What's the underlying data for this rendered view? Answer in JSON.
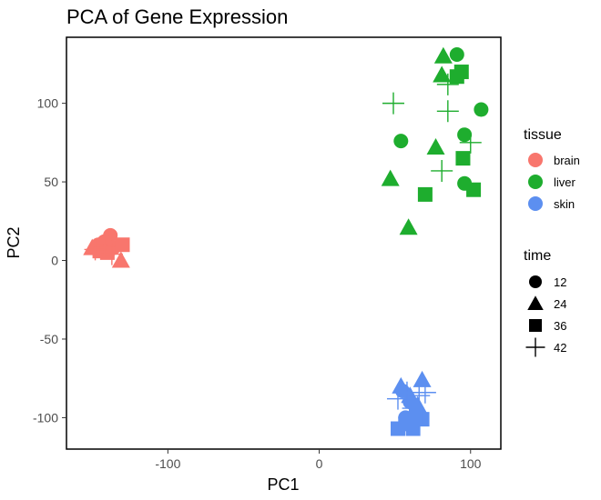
{
  "chart_data": {
    "type": "scatter",
    "title": "PCA of Gene Expression",
    "xlabel": "PC1",
    "ylabel": "PC2",
    "xlim": [
      -167,
      120
    ],
    "ylim": [
      -120,
      142
    ],
    "xticks": [
      -100,
      0,
      100
    ],
    "yticks": [
      -100,
      -50,
      0,
      50,
      100
    ],
    "grid": false,
    "legend_position": "right",
    "legends": [
      {
        "title": "tissue",
        "entries": [
          {
            "label": "brain",
            "color": "#F8766D",
            "shape": "circle"
          },
          {
            "label": "liver",
            "color": "#1EAD2E",
            "shape": "circle"
          },
          {
            "label": "skin",
            "color": "#5C8FF0",
            "shape": "circle"
          }
        ]
      },
      {
        "title": "time",
        "entries": [
          {
            "label": "12",
            "color": "#000000",
            "shape": "circle"
          },
          {
            "label": "24",
            "color": "#000000",
            "shape": "triangle"
          },
          {
            "label": "36",
            "color": "#000000",
            "shape": "square"
          },
          {
            "label": "42",
            "color": "#000000",
            "shape": "plus"
          }
        ]
      }
    ],
    "series": [
      {
        "name": "brain",
        "color": "#F8766D",
        "points": [
          {
            "x": -138,
            "y": 16,
            "shape": "circle"
          },
          {
            "x": -142,
            "y": 12,
            "shape": "circle"
          },
          {
            "x": -146,
            "y": 10,
            "shape": "circle"
          },
          {
            "x": -136,
            "y": 8,
            "shape": "circle"
          },
          {
            "x": -150,
            "y": 8,
            "shape": "triangle"
          },
          {
            "x": -141,
            "y": 13,
            "shape": "triangle"
          },
          {
            "x": -131,
            "y": 0,
            "shape": "triangle"
          },
          {
            "x": -145,
            "y": 6,
            "shape": "square"
          },
          {
            "x": -130,
            "y": 10,
            "shape": "square"
          },
          {
            "x": -140,
            "y": 5,
            "shape": "square"
          },
          {
            "x": -148,
            "y": 7,
            "shape": "plus"
          },
          {
            "x": -137,
            "y": 4,
            "shape": "plus"
          },
          {
            "x": -142,
            "y": 9,
            "shape": "plus"
          }
        ]
      },
      {
        "name": "liver",
        "color": "#1EAD2E",
        "points": [
          {
            "x": 91,
            "y": 131,
            "shape": "circle"
          },
          {
            "x": 107,
            "y": 96,
            "shape": "circle"
          },
          {
            "x": 54,
            "y": 76,
            "shape": "circle"
          },
          {
            "x": 96,
            "y": 80,
            "shape": "circle"
          },
          {
            "x": 96,
            "y": 49,
            "shape": "circle"
          },
          {
            "x": 82,
            "y": 130,
            "shape": "triangle"
          },
          {
            "x": 81,
            "y": 118,
            "shape": "triangle"
          },
          {
            "x": 77,
            "y": 72,
            "shape": "triangle"
          },
          {
            "x": 47,
            "y": 52,
            "shape": "triangle"
          },
          {
            "x": 59,
            "y": 21,
            "shape": "triangle"
          },
          {
            "x": 94,
            "y": 120,
            "shape": "square"
          },
          {
            "x": 91,
            "y": 117,
            "shape": "square"
          },
          {
            "x": 95,
            "y": 65,
            "shape": "square"
          },
          {
            "x": 102,
            "y": 45,
            "shape": "square"
          },
          {
            "x": 70,
            "y": 42,
            "shape": "square"
          },
          {
            "x": 49,
            "y": 100,
            "shape": "plus"
          },
          {
            "x": 85,
            "y": 95,
            "shape": "plus"
          },
          {
            "x": 100,
            "y": 75,
            "shape": "plus"
          },
          {
            "x": 81,
            "y": 57,
            "shape": "plus"
          },
          {
            "x": 85,
            "y": 112,
            "shape": "plus"
          }
        ]
      },
      {
        "name": "skin",
        "color": "#5C8FF0",
        "points": [
          {
            "x": 55,
            "y": -83,
            "shape": "circle"
          },
          {
            "x": 60,
            "y": -90,
            "shape": "circle"
          },
          {
            "x": 64,
            "y": -96,
            "shape": "circle"
          },
          {
            "x": 57,
            "y": -100,
            "shape": "circle"
          },
          {
            "x": 54,
            "y": -80,
            "shape": "triangle"
          },
          {
            "x": 68,
            "y": -76,
            "shape": "triangle"
          },
          {
            "x": 60,
            "y": -86,
            "shape": "triangle"
          },
          {
            "x": 65,
            "y": -92,
            "shape": "triangle"
          },
          {
            "x": 52,
            "y": -107,
            "shape": "square"
          },
          {
            "x": 62,
            "y": -107,
            "shape": "square"
          },
          {
            "x": 68,
            "y": -101,
            "shape": "square"
          },
          {
            "x": 57,
            "y": -104,
            "shape": "square"
          },
          {
            "x": 64,
            "y": -99,
            "shape": "square"
          },
          {
            "x": 52,
            "y": -88,
            "shape": "plus"
          },
          {
            "x": 58,
            "y": -84,
            "shape": "plus"
          },
          {
            "x": 66,
            "y": -86,
            "shape": "plus"
          },
          {
            "x": 70,
            "y": -84,
            "shape": "plus"
          },
          {
            "x": 62,
            "y": -94,
            "shape": "plus"
          }
        ]
      }
    ]
  }
}
